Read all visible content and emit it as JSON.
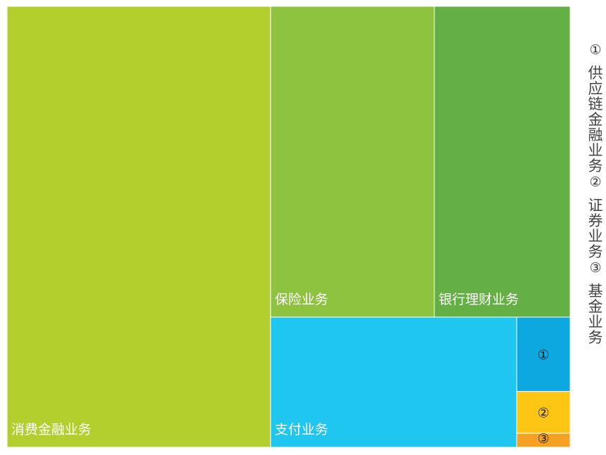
{
  "chart_data": {
    "type": "treemap",
    "items": [
      {
        "label": "消费金融业务",
        "value": 46.8,
        "color": "#b3cf2e"
      },
      {
        "label": "保险业务",
        "value": 20.5,
        "color": "#8dc33f"
      },
      {
        "label": "银行理财业务",
        "value": 17.0,
        "color": "#65b045"
      },
      {
        "label": "支付业务",
        "value": 12.9,
        "color": "#1ec6f0"
      },
      {
        "label": "①",
        "value": 1.6,
        "color": "#0ea8e0"
      },
      {
        "label": "②",
        "value": 0.9,
        "color": "#fdc514"
      },
      {
        "label": "③",
        "value": 0.3,
        "color": "#f5a122"
      }
    ],
    "footnotes": [
      {
        "marker": "①",
        "text": "供应链金融业务"
      },
      {
        "marker": "②",
        "text": "证券业务"
      },
      {
        "marker": "③",
        "text": "基金业务"
      }
    ]
  }
}
